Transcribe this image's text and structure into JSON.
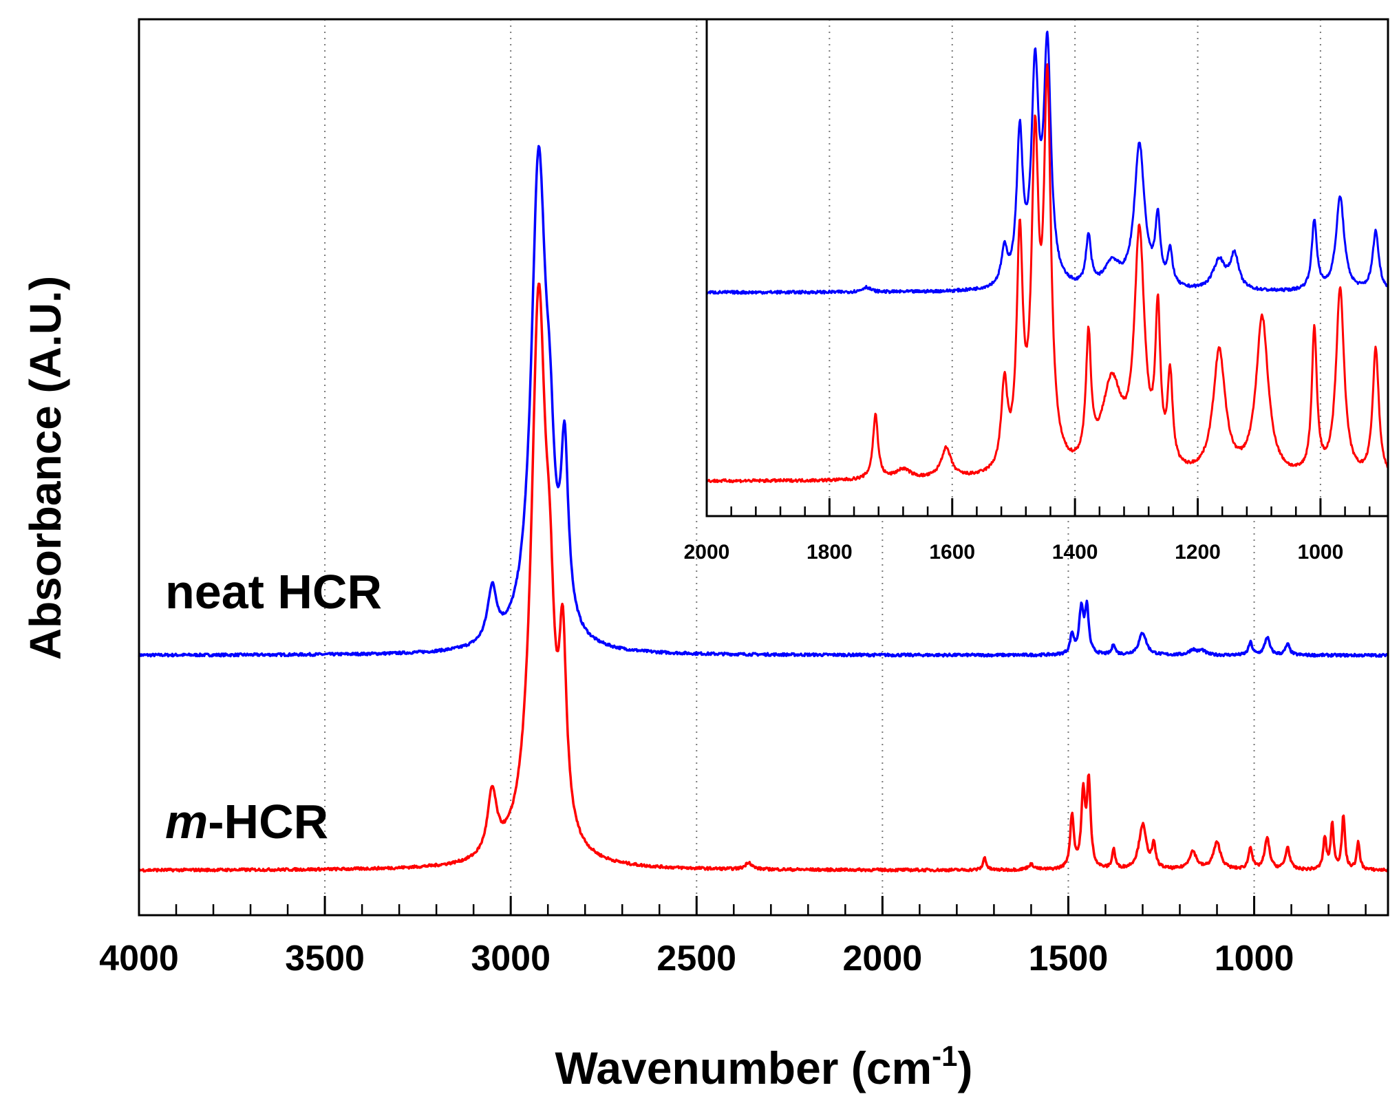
{
  "chart_data": [
    {
      "type": "line",
      "title": "",
      "xlabel": "Wavenumber (cm⁻¹)",
      "xlabel_base": "Wavenumber (cm",
      "xlabel_sup": "-1",
      "xlabel_close": ")",
      "ylabel": "Absorbance (A.U.)",
      "xlim": [
        4000,
        640
      ],
      "ylim": [
        0,
        1
      ],
      "x_reversed": true,
      "grid": "vertical dotted",
      "x_ticks": [
        4000,
        3500,
        3000,
        2500,
        2000,
        1500,
        1000
      ],
      "x_tick_labels": [
        "4000",
        "3500",
        "3000",
        "2500",
        "2000",
        "1500",
        "1000"
      ],
      "y_ticks_shown": false,
      "annotations": [
        {
          "text": "neat HCR",
          "series": "neat HCR"
        },
        {
          "prefix": "m",
          "text": "-HCR",
          "series": "m-HCR"
        }
      ],
      "series": [
        {
          "name": "neat HCR",
          "color": "#0000ff",
          "baseline": 0.29,
          "peaks": [
            {
              "x": 3050,
              "h": 0.06,
              "w": 15
            },
            {
              "x": 2925,
              "h": 0.54,
              "w": 24
            },
            {
              "x": 2895,
              "h": 0.12,
              "w": 14
            },
            {
              "x": 2855,
              "h": 0.19,
              "w": 12
            },
            {
              "x": 1490,
              "h": 0.022,
              "w": 6
            },
            {
              "x": 1465,
              "h": 0.05,
              "w": 7
            },
            {
              "x": 1450,
              "h": 0.05,
              "w": 6
            },
            {
              "x": 1378,
              "h": 0.012,
              "w": 5
            },
            {
              "x": 1300,
              "h": 0.025,
              "w": 12
            },
            {
              "x": 1165,
              "h": 0.006,
              "w": 12
            },
            {
              "x": 1140,
              "h": 0.005,
              "w": 10
            },
            {
              "x": 1010,
              "h": 0.014,
              "w": 6
            },
            {
              "x": 965,
              "h": 0.02,
              "w": 8
            },
            {
              "x": 910,
              "h": 0.012,
              "w": 7
            }
          ]
        },
        {
          "name": "m-HCR",
          "color": "#ff0000",
          "baseline": 0.05,
          "peaks": [
            {
              "x": 3050,
              "h": 0.07,
              "w": 15
            },
            {
              "x": 2925,
              "h": 0.62,
              "w": 24
            },
            {
              "x": 2895,
              "h": 0.15,
              "w": 14
            },
            {
              "x": 2860,
              "h": 0.2,
              "w": 12
            },
            {
              "x": 2360,
              "h": 0.008,
              "w": 10
            },
            {
              "x": 1725,
              "h": 0.014,
              "w": 5
            },
            {
              "x": 1600,
              "h": 0.006,
              "w": 10
            },
            {
              "x": 1490,
              "h": 0.06,
              "w": 6
            },
            {
              "x": 1460,
              "h": 0.08,
              "w": 6
            },
            {
              "x": 1445,
              "h": 0.095,
              "w": 6
            },
            {
              "x": 1378,
              "h": 0.022,
              "w": 5
            },
            {
              "x": 1300,
              "h": 0.05,
              "w": 12
            },
            {
              "x": 1270,
              "h": 0.025,
              "w": 6
            },
            {
              "x": 1165,
              "h": 0.02,
              "w": 12
            },
            {
              "x": 1100,
              "h": 0.03,
              "w": 12
            },
            {
              "x": 1010,
              "h": 0.025,
              "w": 6
            },
            {
              "x": 965,
              "h": 0.035,
              "w": 8
            },
            {
              "x": 910,
              "h": 0.025,
              "w": 7
            },
            {
              "x": 810,
              "h": 0.035,
              "w": 5
            },
            {
              "x": 790,
              "h": 0.05,
              "w": 5
            },
            {
              "x": 760,
              "h": 0.06,
              "w": 5
            },
            {
              "x": 720,
              "h": 0.03,
              "w": 5
            }
          ]
        }
      ]
    },
    {
      "type": "line",
      "title": "inset",
      "xlim": [
        2000,
        890
      ],
      "ylim": [
        0,
        1
      ],
      "x_reversed": true,
      "grid": "vertical dotted",
      "x_ticks": [
        2000,
        1800,
        1600,
        1400,
        1200,
        1000
      ],
      "x_tick_labels": [
        "2000",
        "1800",
        "1600",
        "1400",
        "1200",
        "1000"
      ],
      "series": [
        {
          "name": "neat HCR",
          "color": "#0000ff",
          "baseline": 0.45,
          "peaks": [
            {
              "x": 1740,
              "h": 0.01,
              "w": 8
            },
            {
              "x": 1515,
              "h": 0.07,
              "w": 6
            },
            {
              "x": 1490,
              "h": 0.3,
              "w": 6
            },
            {
              "x": 1465,
              "h": 0.42,
              "w": 7
            },
            {
              "x": 1445,
              "h": 0.47,
              "w": 7
            },
            {
              "x": 1378,
              "h": 0.1,
              "w": 5
            },
            {
              "x": 1340,
              "h": 0.05,
              "w": 15
            },
            {
              "x": 1295,
              "h": 0.29,
              "w": 10
            },
            {
              "x": 1265,
              "h": 0.13,
              "w": 5
            },
            {
              "x": 1245,
              "h": 0.07,
              "w": 5
            },
            {
              "x": 1165,
              "h": 0.06,
              "w": 12
            },
            {
              "x": 1140,
              "h": 0.07,
              "w": 8
            },
            {
              "x": 1010,
              "h": 0.14,
              "w": 5
            },
            {
              "x": 968,
              "h": 0.19,
              "w": 8
            },
            {
              "x": 910,
              "h": 0.12,
              "w": 6
            }
          ]
        },
        {
          "name": "m-HCR",
          "color": "#ff0000",
          "baseline": 0.07,
          "peaks": [
            {
              "x": 1725,
              "h": 0.13,
              "w": 5
            },
            {
              "x": 1680,
              "h": 0.02,
              "w": 15
            },
            {
              "x": 1610,
              "h": 0.06,
              "w": 10
            },
            {
              "x": 1515,
              "h": 0.17,
              "w": 6
            },
            {
              "x": 1490,
              "h": 0.45,
              "w": 6
            },
            {
              "x": 1465,
              "h": 0.62,
              "w": 7
            },
            {
              "x": 1445,
              "h": 0.75,
              "w": 7
            },
            {
              "x": 1378,
              "h": 0.25,
              "w": 5
            },
            {
              "x": 1340,
              "h": 0.18,
              "w": 20
            },
            {
              "x": 1295,
              "h": 0.47,
              "w": 10
            },
            {
              "x": 1265,
              "h": 0.3,
              "w": 5
            },
            {
              "x": 1245,
              "h": 0.18,
              "w": 5
            },
            {
              "x": 1165,
              "h": 0.25,
              "w": 12
            },
            {
              "x": 1095,
              "h": 0.32,
              "w": 12
            },
            {
              "x": 1010,
              "h": 0.29,
              "w": 5
            },
            {
              "x": 968,
              "h": 0.38,
              "w": 8
            },
            {
              "x": 910,
              "h": 0.26,
              "w": 6
            }
          ]
        }
      ]
    }
  ]
}
